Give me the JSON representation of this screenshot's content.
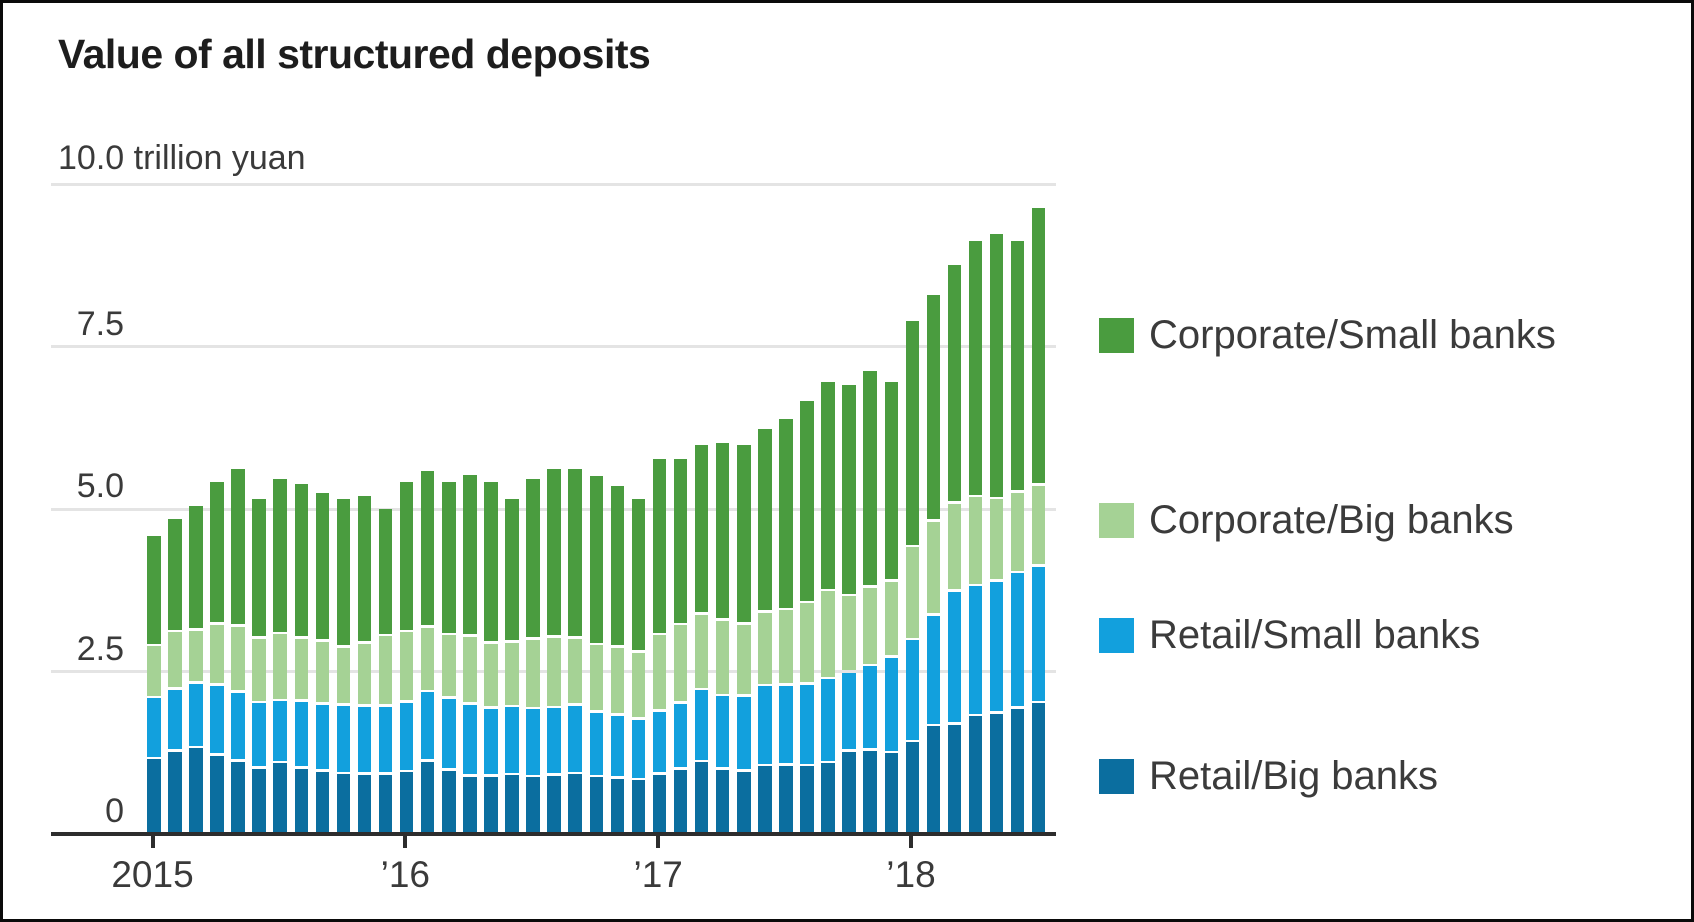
{
  "header": {
    "title": "Value of all structured deposits"
  },
  "axes": {
    "unit_label": "10.0 trillion yuan",
    "y_ticks": [
      {
        "value": 10.0,
        "label": ""
      },
      {
        "value": 7.5,
        "label": "7.5"
      },
      {
        "value": 5.0,
        "label": "5.0"
      },
      {
        "value": 2.5,
        "label": "2.5"
      },
      {
        "value": 0,
        "label": "0"
      }
    ],
    "x_ticks": [
      {
        "label": "2015",
        "month_index": 0
      },
      {
        "label": "’16",
        "month_index": 12
      },
      {
        "label": "’17",
        "month_index": 24
      },
      {
        "label": "’18",
        "month_index": 36
      }
    ]
  },
  "legend": {
    "items": [
      {
        "label": "Corporate/Small banks",
        "color": "#4a9c3f"
      },
      {
        "label": "Corporate/Big banks",
        "color": "#a5d295"
      },
      {
        "label": "Retail/Small banks",
        "color": "#12a0dd"
      },
      {
        "label": "Retail/Big banks",
        "color": "#0b6e9f"
      }
    ]
  },
  "chart_data": {
    "type": "bar",
    "stacked": true,
    "title": "Value of all structured deposits",
    "ylabel": "trillion yuan",
    "xlabel": "",
    "ylim": [
      0,
      10.0
    ],
    "yticks": [
      0,
      2.5,
      5.0,
      7.5,
      10.0
    ],
    "grid": true,
    "legend_position": "right",
    "x": [
      "2015-01",
      "2015-02",
      "2015-03",
      "2015-04",
      "2015-05",
      "2015-06",
      "2015-07",
      "2015-08",
      "2015-09",
      "2015-10",
      "2015-11",
      "2015-12",
      "2016-01",
      "2016-02",
      "2016-03",
      "2016-04",
      "2016-05",
      "2016-06",
      "2016-07",
      "2016-08",
      "2016-09",
      "2016-10",
      "2016-11",
      "2016-12",
      "2017-01",
      "2017-02",
      "2017-03",
      "2017-04",
      "2017-05",
      "2017-06",
      "2017-07",
      "2017-08",
      "2017-09",
      "2017-10",
      "2017-11",
      "2017-12",
      "2018-01",
      "2018-02",
      "2018-03",
      "2018-04",
      "2018-05",
      "2018-06",
      "2018-07"
    ],
    "series": [
      {
        "name": "Retail/Big banks",
        "color": "#0b6e9f",
        "values": [
          1.19,
          1.3,
          1.36,
          1.24,
          1.15,
          1.04,
          1.13,
          1.04,
          1.0,
          0.96,
          0.95,
          0.95,
          0.99,
          1.15,
          1.01,
          0.92,
          0.92,
          0.94,
          0.91,
          0.93,
          0.96,
          0.91,
          0.89,
          0.87,
          0.95,
          1.03,
          1.14,
          1.03,
          1.0,
          1.08,
          1.09,
          1.08,
          1.13,
          1.3,
          1.32,
          1.28,
          1.45,
          1.7,
          1.72,
          1.85,
          1.89,
          1.97,
          2.05
        ]
      },
      {
        "name": "Retail/Small banks",
        "color": "#12a0dd",
        "values": [
          0.94,
          0.96,
          0.99,
          1.08,
          1.06,
          1.01,
          0.95,
          1.03,
          1.03,
          1.05,
          1.05,
          1.05,
          1.07,
          1.07,
          1.11,
          1.11,
          1.05,
          1.05,
          1.05,
          1.04,
          1.05,
          0.99,
          0.97,
          0.93,
          0.97,
          1.01,
          1.11,
          1.13,
          1.15,
          1.23,
          1.23,
          1.25,
          1.29,
          1.22,
          1.3,
          1.47,
          1.57,
          1.7,
          2.05,
          2.0,
          2.03,
          2.08,
          2.1
        ]
      },
      {
        "name": "Corporate/Big banks",
        "color": "#a5d295",
        "values": [
          0.8,
          0.88,
          0.82,
          0.94,
          1.02,
          0.99,
          1.03,
          0.97,
          0.97,
          0.89,
          0.97,
          1.08,
          1.08,
          0.99,
          0.98,
          1.04,
          1.0,
          0.99,
          1.07,
          1.09,
          1.03,
          1.04,
          1.04,
          1.03,
          1.18,
          1.21,
          1.16,
          1.16,
          1.11,
          1.13,
          1.16,
          1.26,
          1.35,
          1.18,
          1.21,
          1.17,
          1.43,
          1.44,
          1.35,
          1.37,
          1.27,
          1.24,
          1.25
        ]
      },
      {
        "name": "Corporate/Small banks",
        "color": "#4a9c3f",
        "values": [
          1.65,
          1.7,
          1.88,
          2.15,
          2.38,
          2.12,
          2.35,
          2.34,
          2.25,
          2.26,
          2.23,
          1.92,
          2.27,
          2.37,
          2.31,
          2.45,
          2.44,
          2.17,
          2.43,
          2.56,
          2.58,
          2.57,
          2.46,
          2.32,
          2.67,
          2.52,
          2.57,
          2.7,
          2.72,
          2.79,
          2.91,
          3.07,
          3.19,
          3.21,
          3.29,
          3.04,
          3.45,
          3.46,
          3.64,
          3.91,
          4.04,
          3.84,
          4.23
        ]
      }
    ]
  }
}
